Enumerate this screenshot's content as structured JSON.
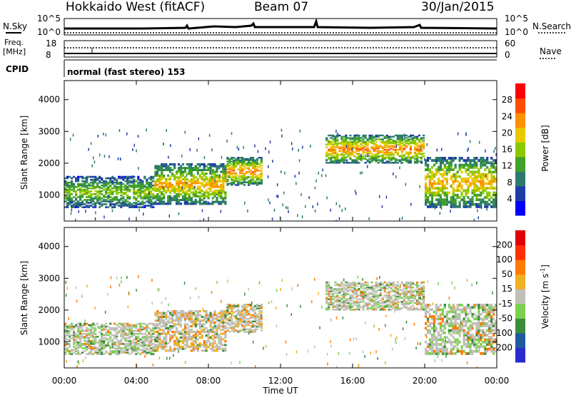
{
  "header": {
    "station": "Hokkaido West (fitACF)",
    "beam": "Beam 07",
    "date": "30/Jan/2015"
  },
  "top_panels": {
    "nsky_label": "N.Sky",
    "nsearch_label": "N.Search",
    "nsky_ticks": [
      "10^5",
      "10^0"
    ],
    "nsearch_ticks": [
      "10^5",
      "10^0"
    ],
    "freq_label_1": "Freq.",
    "freq_label_2": "[MHz]",
    "freq_ticks": [
      "18",
      "8"
    ],
    "nave_label": "Nave",
    "nave_ticks": [
      "60",
      "0"
    ],
    "cpid_label": "CPID",
    "cpid_text": "normal (fast stereo) 153"
  },
  "chart_data": [
    {
      "type": "heatmap",
      "title": "",
      "xlabel": "Time UT",
      "ylabel": "Slant Range [km]",
      "xlim": [
        0,
        24
      ],
      "ylim": [
        180,
        4600
      ],
      "x_ticks": [
        "00:00",
        "04:00",
        "08:00",
        "12:00",
        "16:00",
        "20:00",
        "00:00"
      ],
      "y_ticks": [
        "1000",
        "2000",
        "3000",
        "4000"
      ],
      "colorbar": {
        "label": "Power [dB]",
        "range": [
          0,
          32
        ],
        "ticks": [
          "4",
          "8",
          "12",
          "16",
          "20",
          "24",
          "28"
        ],
        "colors": [
          "#0000ff",
          "#1e3ca8",
          "#2c7a6c",
          "#3fa02a",
          "#8cc800",
          "#e8c800",
          "#ff9100",
          "#ff4d00",
          "#ff0000"
        ]
      },
      "echo_bands": [
        {
          "t_start": 0.0,
          "t_end": 5.0,
          "r_low": 600,
          "r_high": 1600,
          "power_db": 14
        },
        {
          "t_start": 5.0,
          "t_end": 9.0,
          "r_low": 700,
          "r_high": 2000,
          "power_db": 20
        },
        {
          "t_start": 9.0,
          "t_end": 11.0,
          "r_low": 1300,
          "r_high": 2200,
          "power_db": 22
        },
        {
          "t_start": 14.5,
          "t_end": 20.0,
          "r_low": 2000,
          "r_high": 2900,
          "power_db": 22
        },
        {
          "t_start": 20.0,
          "t_end": 24.0,
          "r_low": 600,
          "r_high": 2200,
          "power_db": 20
        }
      ]
    },
    {
      "type": "heatmap",
      "title": "",
      "xlabel": "Time UT",
      "ylabel": "Slant Range [km]",
      "xlim": [
        0,
        24
      ],
      "ylim": [
        180,
        4600
      ],
      "x_ticks": [
        "00:00",
        "04:00",
        "08:00",
        "12:00",
        "16:00",
        "20:00",
        "00:00"
      ],
      "y_ticks": [
        "1000",
        "2000",
        "3000",
        "4000"
      ],
      "colorbar": {
        "label": "Velocity [m s^-1]",
        "ticks": [
          "200",
          "100",
          "50",
          "15",
          "-15",
          "-50",
          "-100",
          "-200"
        ],
        "colors": [
          "#2a2ad0",
          "#1e5aa0",
          "#3c8c3c",
          "#7cd050",
          "#c0c0b8",
          "#f0b020",
          "#ff7a00",
          "#ff3000",
          "#e00000"
        ]
      },
      "echo_bands": [
        {
          "t_start": 0.0,
          "t_end": 5.0,
          "r_low": 600,
          "r_high": 1600,
          "velocity": 0
        },
        {
          "t_start": 5.0,
          "t_end": 9.0,
          "r_low": 700,
          "r_high": 2000,
          "velocity": -20
        },
        {
          "t_start": 9.0,
          "t_end": 11.0,
          "r_low": 1300,
          "r_high": 2200,
          "velocity": -30
        },
        {
          "t_start": 14.5,
          "t_end": 20.0,
          "r_low": 2000,
          "r_high": 2900,
          "velocity": 0
        },
        {
          "t_start": 20.0,
          "t_end": 24.0,
          "r_low": 600,
          "r_high": 2200,
          "velocity": 20
        }
      ]
    }
  ]
}
